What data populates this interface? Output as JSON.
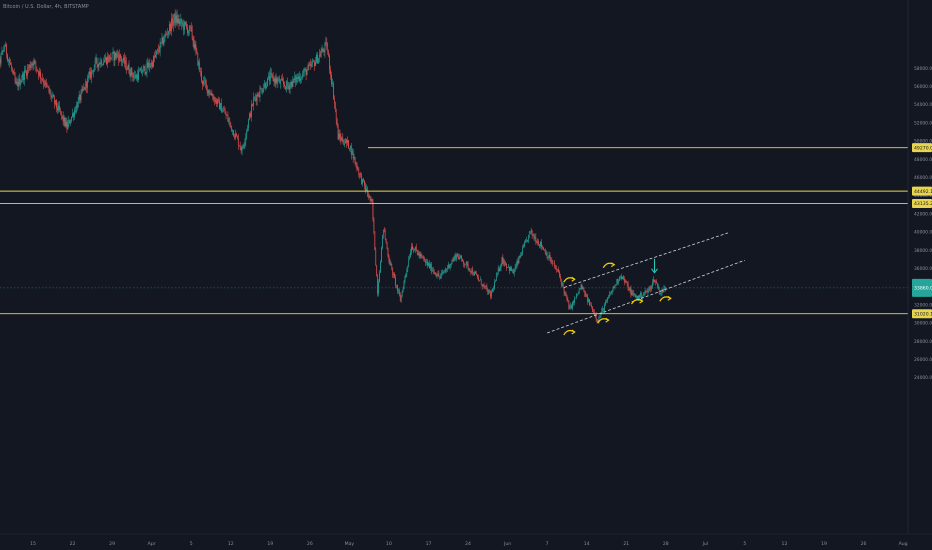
{
  "header": {
    "symbol_title": "Bitcoin / U.S. Dollar, 4h, BITSTAMP"
  },
  "chart_data": {
    "type": "candlestick",
    "title": "",
    "xlabel": "",
    "ylabel": "",
    "price_axis": {
      "currency": "USD",
      "ylim": [
        23000,
        61000
      ],
      "ticks": [
        24000,
        26000,
        28000,
        30000,
        32000,
        34000,
        36000,
        38000,
        40000,
        42000,
        44000,
        46000,
        48000,
        50000,
        52000,
        54000,
        56000,
        58000
      ],
      "tick_labels": [
        "24000.00",
        "26000.00",
        "28000.00",
        "30000.00",
        "32000.00",
        "34000.00",
        "36000.00",
        "38000.00",
        "40000.00",
        "42000.00",
        "44000.00",
        "46000.00",
        "48000.00",
        "50000.00",
        "52000.00",
        "54000.00",
        "56000.00",
        "58000.00"
      ]
    },
    "time_axis": {
      "labels": [
        "15",
        "22",
        "29",
        "Apr",
        "5",
        "12",
        "19",
        "26",
        "May",
        "10",
        "17",
        "24",
        "Jun",
        "7",
        "14",
        "21",
        "28",
        "Jul",
        "5",
        "12",
        "19",
        "26",
        "Aug",
        "9"
      ]
    },
    "horizontal_levels": [
      {
        "price": 49270.03,
        "label": "49270.03",
        "color": "#e8d44d"
      },
      {
        "price": 44492.1,
        "label": "44492.10",
        "color": "#e8d44d"
      },
      {
        "price": 43135.29,
        "label": "43135.29",
        "color": "#e8d44d"
      },
      {
        "price": 31020.18,
        "label": "31020.18",
        "color": "#e8d44d"
      }
    ],
    "current_price": {
      "price": 33860.0,
      "label": "33860.00",
      "color": "#26a69a"
    },
    "trend_channel": {
      "upper": [
        {
          "x": "Jun 21",
          "y": 33900
        },
        {
          "x": "Jul 20",
          "y": 39900
        }
      ],
      "lower": [
        {
          "x": "Jun 18",
          "y": 28900
        },
        {
          "x": "Jul 23",
          "y": 36900
        }
      ]
    },
    "series": [
      {
        "type": "candles",
        "waypoints": [
          {
            "x": "Mar 11",
            "y": 54500
          },
          {
            "x": "Mar 14",
            "y": 60500
          },
          {
            "x": "Mar 16",
            "y": 56000
          },
          {
            "x": "Mar 19",
            "y": 58800
          },
          {
            "x": "Mar 23",
            "y": 54000
          },
          {
            "x": "Mar 25",
            "y": 51500
          },
          {
            "x": "Mar 30",
            "y": 58500
          },
          {
            "x": "Apr 3",
            "y": 59500
          },
          {
            "x": "Apr 6",
            "y": 57000
          },
          {
            "x": "Apr 9",
            "y": 58500
          },
          {
            "x": "Apr 13",
            "y": 63500
          },
          {
            "x": "Apr 16",
            "y": 62000
          },
          {
            "x": "Apr 18",
            "y": 56500
          },
          {
            "x": "Apr 22",
            "y": 53000
          },
          {
            "x": "Apr 25",
            "y": 49000
          },
          {
            "x": "Apr 27",
            "y": 54500
          },
          {
            "x": "Apr 30",
            "y": 57000
          },
          {
            "x": "May 3",
            "y": 56000
          },
          {
            "x": "May 7",
            "y": 58000
          },
          {
            "x": "May 10",
            "y": 60500
          },
          {
            "x": "May 11",
            "y": 56000
          },
          {
            "x": "May 12",
            "y": 50500
          },
          {
            "x": "May 14",
            "y": 49500
          },
          {
            "x": "May 16",
            "y": 46000
          },
          {
            "x": "May 18",
            "y": 43000
          },
          {
            "x": "May 19",
            "y": 33500
          },
          {
            "x": "May 20",
            "y": 40500
          },
          {
            "x": "May 21",
            "y": 37000
          },
          {
            "x": "May 23",
            "y": 32500
          },
          {
            "x": "May 25",
            "y": 38500
          },
          {
            "x": "May 27",
            "y": 37000
          },
          {
            "x": "May 30",
            "y": 35000
          },
          {
            "x": "Jun 2",
            "y": 37500
          },
          {
            "x": "Jun 5",
            "y": 35500
          },
          {
            "x": "Jun 8",
            "y": 33000
          },
          {
            "x": "Jun 10",
            "y": 37000
          },
          {
            "x": "Jun 12",
            "y": 35500
          },
          {
            "x": "Jun 15",
            "y": 40000
          },
          {
            "x": "Jun 17",
            "y": 38500
          },
          {
            "x": "Jun 20",
            "y": 35500
          },
          {
            "x": "Jun 22",
            "y": 31500
          },
          {
            "x": "Jun 24",
            "y": 34000
          },
          {
            "x": "Jun 26",
            "y": 31500
          },
          {
            "x": "Jun 27",
            "y": 30300
          },
          {
            "x": "Jun 29",
            "y": 33000
          },
          {
            "x": "Jul 1",
            "y": 35300
          },
          {
            "x": "Jul 3",
            "y": 33200
          },
          {
            "x": "Jul 4",
            "y": 32800
          },
          {
            "x": "Jul 6",
            "y": 33600
          },
          {
            "x": "Jul 7",
            "y": 34800
          },
          {
            "x": "Jul 8",
            "y": 33300
          },
          {
            "x": "Jul 9",
            "y": 33860
          }
        ]
      }
    ],
    "annotations": [
      {
        "type": "arrow-down",
        "x": "Jul 7",
        "y": 35300,
        "color": "#2ec5b6"
      },
      {
        "type": "marker",
        "x": "Jun 22",
        "y": 34700,
        "color": "#f5d000"
      },
      {
        "type": "marker",
        "x": "Jun 29",
        "y": 36300,
        "color": "#f5d000"
      },
      {
        "type": "marker",
        "x": "Jun 22",
        "y": 28900,
        "color": "#f5d000"
      },
      {
        "type": "marker",
        "x": "Jun 28",
        "y": 30200,
        "color": "#f5d000"
      },
      {
        "type": "marker",
        "x": "Jul 4",
        "y": 32300,
        "color": "#f5d000"
      },
      {
        "type": "marker",
        "x": "Jul 9",
        "y": 32600,
        "color": "#f5d000"
      }
    ],
    "colors": {
      "background": "#131722",
      "up_candle": "#26a69a",
      "down_candle": "#ef5350",
      "level_line": "#e8d44d",
      "channel_line": "#d1d4dc",
      "axis_text": "#8a8f9c",
      "price_label_text": "#131722"
    }
  }
}
